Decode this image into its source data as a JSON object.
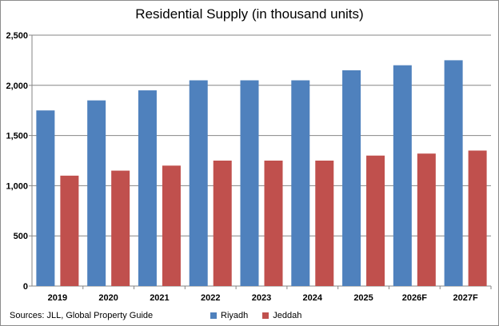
{
  "chart_data": {
    "type": "bar",
    "title": "Residential Supply (in thousand units)",
    "xlabel": "",
    "ylabel": "",
    "categories": [
      "2019",
      "2020",
      "2021",
      "2022",
      "2023",
      "2024",
      "2025",
      "2026F",
      "2027F"
    ],
    "series": [
      {
        "name": "Riyadh",
        "color": "#4f81bd",
        "values": [
          1750,
          1850,
          1950,
          2050,
          2050,
          2050,
          2150,
          2200,
          2250
        ]
      },
      {
        "name": "Jeddah",
        "color": "#c0504d",
        "values": [
          1100,
          1150,
          1200,
          1250,
          1250,
          1250,
          1300,
          1320,
          1350
        ]
      }
    ],
    "ylim": [
      0,
      2500
    ],
    "yticks": [
      0,
      500,
      1000,
      1500,
      2000,
      2500
    ],
    "ytick_labels": [
      "0",
      "500",
      "1,000",
      "1,500",
      "2,000",
      "2,500"
    ],
    "grid": true,
    "legend_position": "bottom"
  },
  "source_text": "Sources: JLL, Global Property Guide"
}
